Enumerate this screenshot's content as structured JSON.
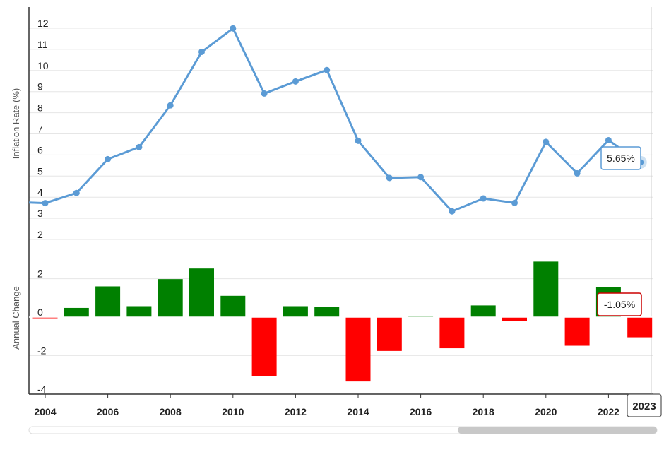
{
  "chart_data": [
    {
      "type": "line",
      "ylabel": "Inflation Rate (%)",
      "ylim": [
        2,
        13
      ],
      "yticks": [
        2,
        3,
        4,
        5,
        6,
        7,
        8,
        9,
        10,
        11,
        12
      ],
      "x": [
        2003,
        2004,
        2005,
        2006,
        2007,
        2008,
        2009,
        2010,
        2011,
        2012,
        2013,
        2014,
        2015,
        2016,
        2017,
        2018,
        2019,
        2020,
        2021,
        2022,
        2023
      ],
      "series": [
        {
          "values": [
            3.75,
            3.72,
            4.2,
            5.8,
            6.37,
            8.35,
            10.88,
            11.99,
            8.91,
            9.48,
            10.02,
            6.67,
            4.91,
            4.95,
            3.33,
            3.94,
            3.73,
            6.62,
            5.13,
            6.7,
            5.65
          ],
          "color": "#5b9bd5"
        }
      ],
      "grid": true,
      "tooltip": {
        "x": 2023,
        "label": "5.65%"
      }
    },
    {
      "type": "bar",
      "ylabel": "Annual Change",
      "ylim": [
        -4,
        3
      ],
      "yticks": [
        -4,
        -2,
        0,
        2
      ],
      "x": [
        2003,
        2004,
        2005,
        2006,
        2007,
        2008,
        2009,
        2010,
        2011,
        2012,
        2013,
        2014,
        2015,
        2016,
        2017,
        2018,
        2019,
        2020,
        2021,
        2022,
        2023
      ],
      "series": [
        {
          "values": [
            0.04,
            -0.03,
            0.48,
            1.6,
            0.57,
            1.98,
            2.53,
            1.11,
            -3.08,
            0.57,
            0.54,
            -3.35,
            -1.76,
            0.04,
            -1.62,
            0.61,
            -0.21,
            2.89,
            -1.49,
            1.57,
            -1.05
          ]
        }
      ],
      "positive_color": "#008000",
      "negative_color": "#ff0000",
      "tooltip": {
        "x": 2023,
        "label": "-1.05%"
      }
    }
  ],
  "xaxis": {
    "ticks": [
      2004,
      2006,
      2008,
      2010,
      2012,
      2014,
      2016,
      2018,
      2020,
      2022
    ],
    "crosshair_label": "2023"
  }
}
